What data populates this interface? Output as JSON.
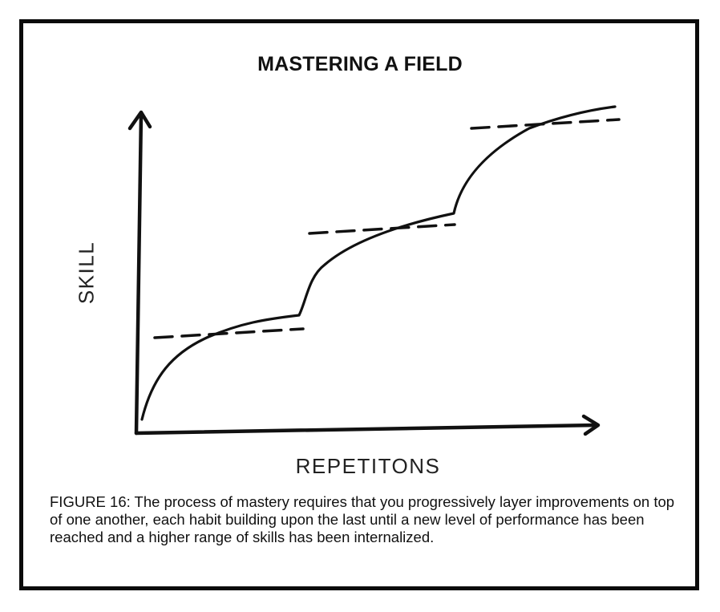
{
  "title": "MASTERING A FIELD",
  "axes": {
    "y_label": "SKILL",
    "x_label": "REPETITONS"
  },
  "caption": "FIGURE 16: The process of mastery requires that you progressively layer improvements on top of one another, each habit building upon the last until a new level of performance has been reached and a higher range of skills has been internalized.",
  "colors": {
    "ink": "#111111",
    "frame": "#0b0b0b",
    "background": "#ffffff"
  }
}
